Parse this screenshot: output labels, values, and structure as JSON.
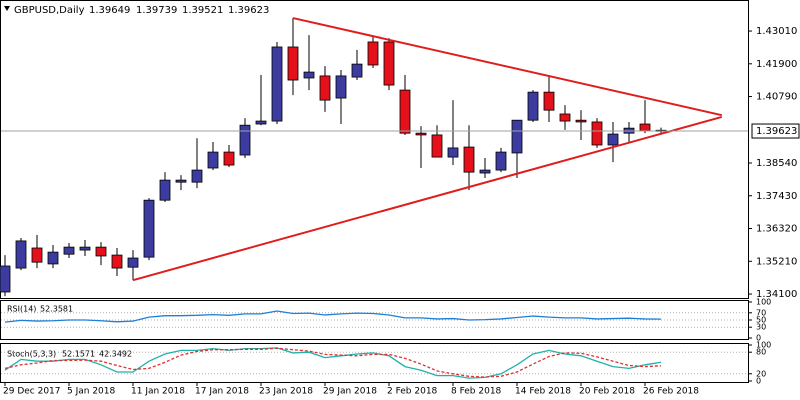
{
  "chart_data": [
    {
      "type": "candlestick",
      "title": "GBPUSD,Daily",
      "categories": [
        "29 Dec 2017",
        null,
        null,
        null,
        "5 Jan 2018",
        null,
        null,
        null,
        "11 Jan 2018",
        null,
        null,
        null,
        "17 Jan 2018",
        null,
        null,
        null,
        "23 Jan 2018",
        null,
        null,
        null,
        "29 Jan 2018",
        null,
        null,
        null,
        "2 Feb 2018",
        null,
        null,
        null,
        "8 Feb 2018",
        null,
        null,
        null,
        "14 Feb 2018",
        null,
        null,
        null,
        "20 Feb 2018",
        null,
        null,
        null,
        "26 Feb 2018",
        null
      ],
      "open": [
        1.3417,
        1.3498,
        1.3566,
        1.3512,
        1.3545,
        1.3559,
        1.3569,
        1.3542,
        1.3501,
        1.3535,
        1.3728,
        1.3789,
        1.3789,
        1.3837,
        1.3891,
        1.3881,
        1.3986,
        1.3996,
        1.4247,
        1.4142,
        1.4149,
        1.4074,
        1.4145,
        1.4264,
        1.4264,
        1.4101,
        1.3955,
        1.3949,
        1.3874,
        1.3908,
        1.382,
        1.383,
        1.3888,
        1.3999,
        1.4094,
        1.402,
        1.3999,
        1.3993,
        1.3915,
        1.3955,
        1.3986,
        1.39649
      ],
      "high": [
        1.3542,
        1.36,
        1.361,
        1.3576,
        1.3583,
        1.3593,
        1.3586,
        1.3566,
        1.3559,
        1.3735,
        1.3823,
        1.3813,
        1.3938,
        1.3925,
        1.3915,
        1.4006,
        1.4152,
        1.4264,
        1.4345,
        1.4287,
        1.4182,
        1.4169,
        1.4237,
        1.4284,
        1.4277,
        1.4152,
        1.3979,
        1.3982,
        1.4067,
        1.3982,
        1.3871,
        1.3905,
        1.3999,
        1.4101,
        1.4152,
        1.405,
        1.4033,
        1.4006,
        1.3993,
        1.3993,
        1.4067,
        1.39739
      ],
      "low": [
        1.3403,
        1.3491,
        1.3498,
        1.3498,
        1.3532,
        1.3539,
        1.3508,
        1.3471,
        1.3457,
        1.3525,
        1.3722,
        1.3762,
        1.3769,
        1.383,
        1.384,
        1.3871,
        1.3982,
        1.3986,
        1.4084,
        1.4101,
        1.4027,
        1.3986,
        1.4135,
        1.4176,
        1.4101,
        1.3949,
        1.3837,
        1.3874,
        1.3847,
        1.3762,
        1.3803,
        1.3823,
        1.3803,
        1.3993,
        1.3993,
        1.3966,
        1.3932,
        1.3905,
        1.3857,
        1.3925,
        1.3955,
        1.39521
      ],
      "close": [
        1.3505,
        1.359,
        1.3518,
        1.3552,
        1.3569,
        1.3569,
        1.3539,
        1.3498,
        1.3532,
        1.3728,
        1.3796,
        1.3796,
        1.383,
        1.3891,
        1.3847,
        1.3982,
        1.3996,
        1.4247,
        1.4135,
        1.4162,
        1.4067,
        1.4149,
        1.4189,
        1.4186,
        1.4118,
        1.3955,
        1.3949,
        1.3874,
        1.3905,
        1.3823,
        1.383,
        1.3891,
        1.3999,
        1.4094,
        1.4033,
        1.3996,
        1.3993,
        1.3915,
        1.3952,
        1.3972,
        1.3962,
        1.39623
      ],
      "up_color": "#3c3ca0",
      "down_color": "#e4101a",
      "trendlines": [
        {
          "x": [
            18,
            44.8
          ],
          "y": [
            1.4345,
            1.4016
          ]
        },
        {
          "x": [
            8,
            44.8
          ],
          "y": [
            1.3457,
            1.401
          ]
        }
      ],
      "trendline_color": "#e01c1c",
      "ylim": [
        1.34,
        1.4396
      ],
      "yticks": [
        {
          "value": 1.4301,
          "label": "1.43010"
        },
        {
          "value": 1.419,
          "label": "1.41900"
        },
        {
          "value": 1.4079,
          "label": "1.40790"
        },
        {
          "value": 1.3854,
          "label": "1.38540"
        },
        {
          "value": 1.3743,
          "label": "1.37430"
        },
        {
          "value": 1.3632,
          "label": "1.36320"
        },
        {
          "value": 1.3521,
          "label": "1.35210"
        },
        {
          "value": 1.341,
          "label": "1.34100"
        }
      ]
    },
    {
      "type": "line",
      "title": "RSI(14)",
      "series": [
        {
          "color": "#1e7fd6",
          "values": [
            44,
            49,
            47,
            48,
            50,
            50,
            48,
            45,
            47,
            58,
            62,
            62,
            63,
            65,
            63,
            67,
            67,
            75,
            68,
            69,
            64,
            67,
            69,
            68,
            64,
            56,
            56,
            53,
            54,
            50,
            51,
            53,
            57,
            61,
            58,
            56,
            56,
            53,
            54,
            55,
            53,
            52.3581
          ]
        }
      ],
      "ylim": [
        0,
        100
      ],
      "yticks": [
        100,
        70,
        50,
        30,
        0
      ]
    },
    {
      "type": "line",
      "title": "Stoch(5,3,3)",
      "series": [
        {
          "color": "#20b2aa",
          "values": [
            30,
            60,
            55,
            55,
            60,
            60,
            45,
            25,
            25,
            55,
            75,
            85,
            85,
            90,
            85,
            90,
            90,
            92,
            78,
            80,
            65,
            70,
            75,
            78,
            70,
            40,
            30,
            15,
            15,
            8,
            10,
            20,
            45,
            75,
            85,
            75,
            70,
            55,
            40,
            35,
            45,
            52.1571
          ]
        },
        {
          "color": "#e03030",
          "dashed": true,
          "values": [
            35,
            45,
            50,
            57,
            57,
            58,
            55,
            43,
            32,
            35,
            52,
            72,
            82,
            87,
            87,
            88,
            88,
            91,
            87,
            83,
            74,
            72,
            70,
            74,
            74,
            63,
            47,
            28,
            20,
            13,
            11,
            13,
            25,
            47,
            68,
            78,
            77,
            67,
            55,
            43,
            40,
            42.3492
          ]
        }
      ],
      "ylim": [
        0,
        100
      ],
      "yticks": [
        100,
        80,
        20,
        0
      ]
    }
  ]
}
